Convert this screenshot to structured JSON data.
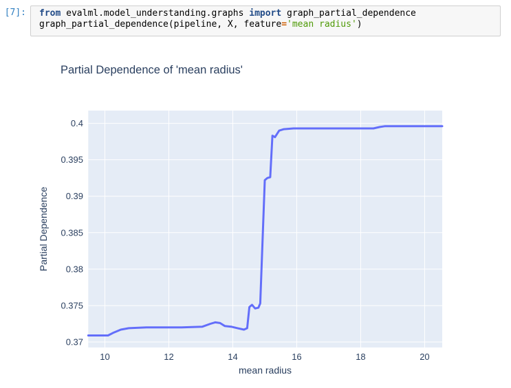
{
  "code_cell": {
    "prompt": "[7]:",
    "lines": [
      [
        {
          "t": "from",
          "c": "kw"
        },
        {
          "t": " evalml.model_understanding.graphs ",
          "c": "plain"
        },
        {
          "t": "import",
          "c": "kw"
        },
        {
          "t": " graph_partial_dependence",
          "c": "plain"
        }
      ],
      [
        {
          "t": "graph_partial_dependence(pipeline, X, feature",
          "c": "plain"
        },
        {
          "t": "=",
          "c": "op"
        },
        {
          "t": "'mean radius'",
          "c": "str"
        },
        {
          "t": ")",
          "c": "plain"
        }
      ]
    ]
  },
  "chart_data": {
    "type": "line",
    "title": "Partial Dependence of 'mean radius'",
    "xlabel": "mean radius",
    "ylabel": "Partial Dependence",
    "x_ticks": [
      10,
      12,
      14,
      16,
      18,
      20
    ],
    "y_ticks": [
      0.37,
      0.375,
      0.38,
      0.385,
      0.39,
      0.395,
      0.4
    ],
    "xlim": [
      9.48,
      20.55
    ],
    "ylim": [
      0.36925,
      0.40175
    ],
    "grid": true,
    "legend": "none",
    "colors": {
      "line": "#636efa",
      "plot_background": "#e5ecf6",
      "gridline": "#ffffff",
      "text": "#2a3f5f"
    },
    "series": [
      {
        "name": "Partial Dependence",
        "x": [
          9.48,
          10.1,
          10.28,
          10.5,
          10.75,
          11.3,
          12.4,
          13.05,
          13.3,
          13.45,
          13.6,
          13.75,
          13.95,
          14.15,
          14.35,
          14.45,
          14.52,
          14.6,
          14.7,
          14.8,
          14.86,
          15.0,
          15.08,
          15.17,
          15.24,
          15.32,
          15.45,
          15.6,
          15.9,
          18.4,
          18.6,
          18.75,
          20.55
        ],
        "y": [
          0.3709,
          0.3709,
          0.3713,
          0.3717,
          0.3719,
          0.372,
          0.372,
          0.3721,
          0.3725,
          0.3727,
          0.3726,
          0.3722,
          0.3721,
          0.3719,
          0.3717,
          0.3719,
          0.3748,
          0.3751,
          0.3746,
          0.3747,
          0.3753,
          0.3922,
          0.3925,
          0.3926,
          0.3983,
          0.3981,
          0.399,
          0.3992,
          0.3993,
          0.3993,
          0.3995,
          0.3996,
          0.3996
        ]
      }
    ]
  }
}
